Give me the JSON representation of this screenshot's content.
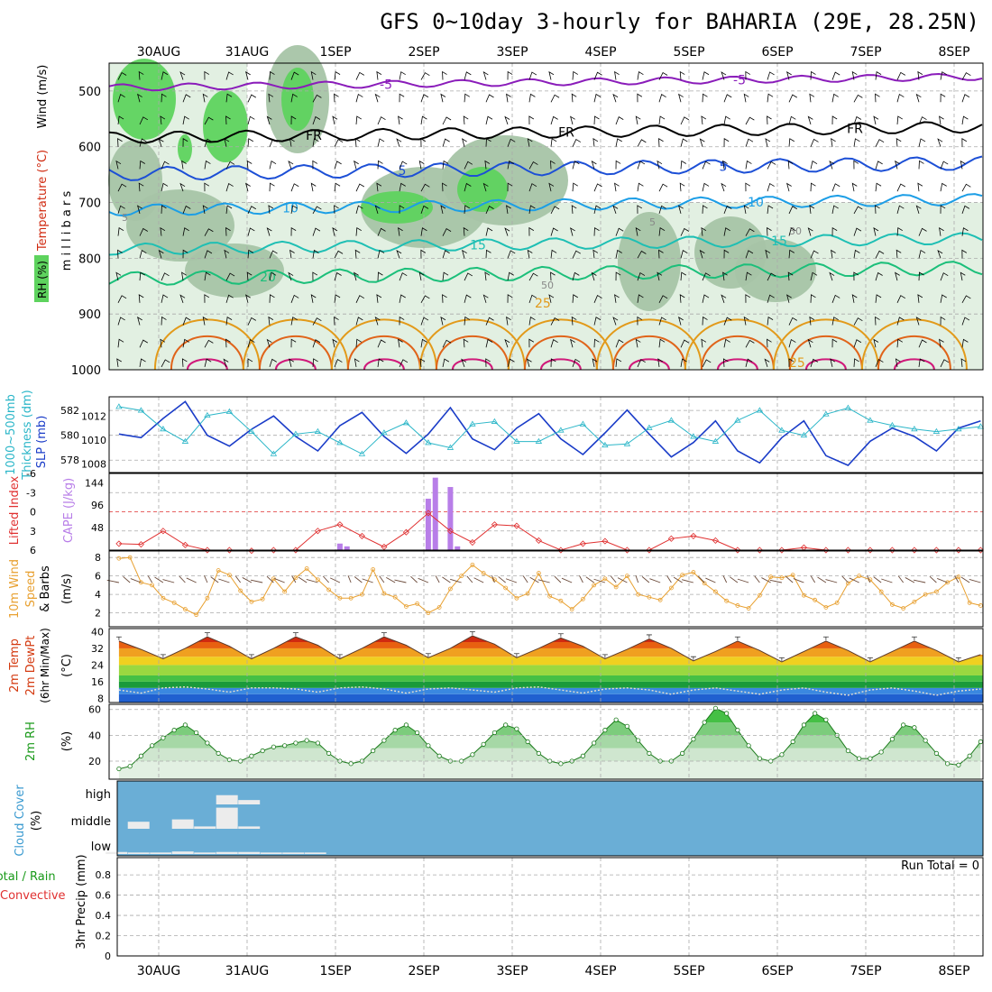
{
  "title": "GFS 0~10day 3-hourly for BAHARIA (29E, 28.25N)",
  "chart_data": [
    {
      "type": "heatmap",
      "panel": "upper-air",
      "ylabel": "m i l l i b a r s",
      "side_labels": [
        "RH (%)",
        "Temperature (°C)",
        "Wind (m/s)"
      ],
      "y_ticks": [
        500,
        600,
        700,
        800,
        900,
        1000
      ],
      "ylim": [
        1000,
        450
      ],
      "x_categories": [
        "30AUG",
        "31AUG",
        "1SEP",
        "2SEP",
        "3SEP",
        "4SEP",
        "5SEP",
        "6SEP",
        "7SEP",
        "8SEP"
      ],
      "isotherm_labels": [
        "-5",
        "FR",
        "5",
        "10",
        "15",
        "20",
        "25",
        "30"
      ],
      "rh_contour_labels": [
        "5",
        "30",
        "50"
      ],
      "colors": {
        "rh_high": "#5ed35e",
        "rh_mid": "#a6c4a6",
        "rh_low": "#e2f0e2",
        "iso_m5": "#8a1cba",
        "iso_fr": "#000000",
        "iso_5": "#1c4fd6",
        "iso_10": "#1c9ee6",
        "iso_15": "#1ebfb4",
        "iso_20": "#1bbf7a",
        "iso_25": "#e29a1a",
        "iso_30": "#e0641a",
        "iso_35": "#d01a7a"
      }
    },
    {
      "type": "line",
      "panel": "sea-level-pressure",
      "series": [
        {
          "name": "SLP (mb)",
          "color": "#1a3cc8",
          "x_days": [
            0.0,
            0.25,
            0.5,
            0.75,
            1.0,
            1.25,
            1.5,
            1.75,
            2.0,
            2.25,
            2.5,
            2.75,
            3.0,
            3.25,
            3.5,
            3.75,
            4.0,
            4.25,
            4.5,
            4.75,
            5.0,
            5.25,
            5.5,
            5.75,
            6.0,
            6.25,
            6.5,
            6.75,
            7.0,
            7.25,
            7.5,
            7.75,
            8.0,
            8.25,
            8.5,
            8.75,
            9.0,
            9.25,
            9.5,
            9.75,
            10.0
          ],
          "values": [
            1010.5,
            1010.2,
            1011.8,
            1013.2,
            1010.4,
            1009.5,
            1010.9,
            1012.0,
            1010.3,
            1009.1,
            1011.2,
            1012.3,
            1010.3,
            1008.9,
            1010.5,
            1012.7,
            1010.1,
            1009.2,
            1011.0,
            1012.2,
            1010.1,
            1008.8,
            1010.6,
            1012.5,
            1010.5,
            1008.6,
            1009.8,
            1011.6,
            1009.1,
            1008.1,
            1010.2,
            1011.6,
            1008.7,
            1007.9,
            1009.9,
            1011.0,
            1010.3,
            1009.1,
            1011.0,
            1011.6,
            1011.8
          ]
        },
        {
          "name": "1000~500mb Thickness (dm)",
          "color": "#2bb6c8",
          "x_days": [
            0.0,
            0.25,
            0.5,
            0.75,
            1.0,
            1.25,
            1.5,
            1.75,
            2.0,
            2.25,
            2.5,
            2.75,
            3.0,
            3.25,
            3.5,
            3.75,
            4.0,
            4.25,
            4.5,
            4.75,
            5.0,
            5.25,
            5.5,
            5.75,
            6.0,
            6.25,
            6.5,
            6.75,
            7.0,
            7.25,
            7.5,
            7.75,
            8.0,
            8.25,
            8.5,
            8.75,
            9.0,
            9.25,
            9.5,
            9.75,
            10.0
          ],
          "values": [
            582.3,
            582.0,
            580.5,
            579.5,
            581.6,
            581.9,
            580.3,
            578.5,
            580.1,
            580.3,
            579.4,
            578.5,
            580.2,
            581.0,
            579.4,
            579.0,
            580.9,
            581.1,
            579.5,
            579.5,
            580.4,
            580.9,
            579.2,
            579.3,
            580.6,
            581.2,
            579.9,
            579.5,
            581.2,
            582.0,
            580.4,
            580.0,
            581.7,
            582.2,
            581.2,
            580.8,
            580.5,
            580.3,
            580.5,
            580.7,
            580.5
          ]
        }
      ],
      "y_ticks_left": [
        578,
        580,
        582
      ],
      "y_ticks_right": [
        1008,
        1010,
        1012
      ],
      "ylim_left": [
        577,
        583.1
      ],
      "ylim_right": [
        1007.3,
        1013.6
      ]
    },
    {
      "type": "bar",
      "panel": "instability",
      "series": [
        {
          "name": "CAPE (J/kg)",
          "color": "#b87ee8",
          "x_days": [
            2.5,
            2.58,
            3.5,
            3.58,
            3.75,
            3.83
          ],
          "values": [
            14,
            8,
            110,
            155,
            135,
            8
          ]
        },
        {
          "name": "Lifted Index",
          "color": "#e03030",
          "x_days": [
            0.0,
            0.25,
            0.5,
            0.75,
            1.0,
            1.25,
            1.5,
            1.75,
            2.0,
            2.25,
            2.5,
            2.75,
            3.0,
            3.25,
            3.5,
            3.75,
            4.0,
            4.25,
            4.5,
            4.75,
            5.0,
            5.25,
            5.5,
            5.75,
            6.0,
            6.25,
            6.5,
            6.75,
            7.0,
            7.25,
            7.5,
            7.75,
            8.0,
            8.25,
            8.5,
            8.75,
            9.0,
            9.25,
            9.5,
            9.75,
            10.0
          ],
          "values": [
            5.0,
            5.1,
            3.0,
            5.2,
            6.0,
            6.0,
            6.1,
            6.0,
            6.0,
            3.0,
            2.0,
            3.8,
            5.5,
            3.2,
            0.2,
            3.0,
            4.8,
            2.0,
            2.2,
            4.5,
            6.0,
            5.0,
            4.6,
            6.0,
            6.0,
            4.2,
            3.8,
            4.5,
            6.0,
            6.0,
            6.0,
            5.6,
            6.0,
            6.0,
            6.0,
            6.0,
            6.0,
            6.0,
            6.0,
            6.0,
            6.0
          ]
        }
      ],
      "y_ticks_left": [
        "-6",
        "-3",
        "0",
        "3",
        "6"
      ],
      "y_ticks_right": [
        "144",
        "96",
        "48"
      ],
      "ylim_left": [
        6,
        -6
      ],
      "ylim_right": [
        0,
        164
      ]
    },
    {
      "type": "line",
      "panel": "10m-wind",
      "series": [
        {
          "name": "10m Wind Speed (m/s)",
          "color": "#e8a030",
          "x_days": [
            0.0,
            0.125,
            0.25,
            0.375,
            0.5,
            0.625,
            0.75,
            0.875,
            1.0,
            1.125,
            1.25,
            1.375,
            1.5,
            1.625,
            1.75,
            1.875,
            2.0,
            2.125,
            2.25,
            2.375,
            2.5,
            2.625,
            2.75,
            2.875,
            3.0,
            3.125,
            3.25,
            3.375,
            3.5,
            3.625,
            3.75,
            3.875,
            4.0,
            4.125,
            4.25,
            4.375,
            4.5,
            4.625,
            4.75,
            4.875,
            5.0,
            5.125,
            5.25,
            5.375,
            5.5,
            5.625,
            5.75,
            5.875,
            6.0,
            6.125,
            6.25,
            6.375,
            6.5,
            6.625,
            6.75,
            6.875,
            7.0,
            7.125,
            7.25,
            7.375,
            7.5,
            7.625,
            7.75,
            7.875,
            8.0,
            8.125,
            8.25,
            8.375,
            8.5,
            8.625,
            8.75,
            8.875,
            9.0,
            9.125,
            9.25,
            9.375,
            9.5,
            9.625,
            9.75,
            9.875,
            10.0
          ],
          "values": [
            7.9,
            8.0,
            5.3,
            5.0,
            3.6,
            3.1,
            2.4,
            1.8,
            3.6,
            6.6,
            6.1,
            4.4,
            3.2,
            3.5,
            5.7,
            4.3,
            5.8,
            6.8,
            5.6,
            4.5,
            3.6,
            3.6,
            4.0,
            6.7,
            4.1,
            3.7,
            2.7,
            3.0,
            2.0,
            2.6,
            4.6,
            6.0,
            7.2,
            6.3,
            5.6,
            4.7,
            3.6,
            4.1,
            6.3,
            3.8,
            3.3,
            2.4,
            3.5,
            5.0,
            5.7,
            4.8,
            6.0,
            4.0,
            3.7,
            3.4,
            4.7,
            6.1,
            6.4,
            5.2,
            4.3,
            3.3,
            2.8,
            2.5,
            3.9,
            5.9,
            5.8,
            6.1,
            3.9,
            3.4,
            2.6,
            3.1,
            5.2,
            6.0,
            5.6,
            4.3,
            2.9,
            2.5,
            3.2,
            4.0,
            4.3,
            5.3,
            5.9,
            3.1,
            2.8,
            1.7,
            1.8
          ]
        }
      ],
      "y_ticks": [
        2,
        4,
        6,
        8
      ],
      "ylim": [
        0.5,
        8.7
      ]
    },
    {
      "type": "area",
      "panel": "2m-temperature",
      "series": [
        {
          "name": "2m Temp (°C)",
          "color": "#d43a10",
          "x_days": [
            0.0,
            0.25,
            0.5,
            0.75,
            1.0,
            1.25,
            1.5,
            1.75,
            2.0,
            2.25,
            2.5,
            2.75,
            3.0,
            3.25,
            3.5,
            3.75,
            4.0,
            4.25,
            4.5,
            4.75,
            5.0,
            5.25,
            5.5,
            5.75,
            6.0,
            6.25,
            6.5,
            6.75,
            7.0,
            7.25,
            7.5,
            7.75,
            8.0,
            8.25,
            8.5,
            8.75,
            9.0,
            9.25,
            9.5,
            9.75,
            10.0
          ],
          "values": [
            35.5,
            31.5,
            27.0,
            32.0,
            37.5,
            33.0,
            27.0,
            32.0,
            37.5,
            33.5,
            27.0,
            32.0,
            37.5,
            33.5,
            27.5,
            32.0,
            38.0,
            34.0,
            27.5,
            32.0,
            37.0,
            33.0,
            27.0,
            31.5,
            36.5,
            32.0,
            26.0,
            30.5,
            35.5,
            31.0,
            25.5,
            30.5,
            35.5,
            31.0,
            25.5,
            30.5,
            35.5,
            31.0,
            25.5,
            29.0,
            28.0
          ]
        },
        {
          "name": "2m DewPt (°C)",
          "color": "#c06a6a",
          "x_days": [
            0.0,
            0.25,
            0.5,
            0.75,
            1.0,
            1.25,
            1.5,
            1.75,
            2.0,
            2.25,
            2.5,
            2.75,
            3.0,
            3.25,
            3.5,
            3.75,
            4.0,
            4.25,
            4.5,
            4.75,
            5.0,
            5.25,
            5.5,
            5.75,
            6.0,
            6.25,
            6.5,
            6.75,
            7.0,
            7.25,
            7.5,
            7.75,
            8.0,
            8.25,
            8.5,
            8.75,
            9.0,
            9.25,
            9.5,
            9.75,
            10.0
          ],
          "values": [
            12.0,
            10.5,
            13.0,
            13.5,
            12.5,
            11.0,
            13.0,
            13.0,
            12.5,
            11.0,
            13.0,
            13.5,
            12.5,
            10.5,
            12.5,
            13.0,
            12.0,
            11.0,
            13.0,
            13.5,
            12.0,
            10.5,
            12.5,
            13.0,
            12.0,
            10.0,
            12.0,
            13.0,
            11.5,
            10.0,
            12.0,
            13.0,
            11.0,
            9.5,
            12.0,
            13.0,
            11.5,
            9.5,
            11.5,
            12.5,
            12.0
          ]
        }
      ],
      "y_ticks": [
        8,
        16,
        24,
        32,
        40
      ],
      "ylim": [
        6,
        41.5
      ],
      "band_colors": [
        "#2060d0",
        "#3a88e0",
        "#1a9a3a",
        "#45c045",
        "#9ad840",
        "#f0d020",
        "#f0a020",
        "#e86010",
        "#d02a10",
        "#a01010"
      ]
    },
    {
      "type": "area",
      "panel": "2m-rh",
      "series": [
        {
          "name": "2m RH (%)",
          "color": "#1a7a1a",
          "x_days": [
            0.0,
            0.125,
            0.25,
            0.375,
            0.5,
            0.625,
            0.75,
            0.875,
            1.0,
            1.125,
            1.25,
            1.375,
            1.5,
            1.625,
            1.75,
            1.875,
            2.0,
            2.125,
            2.25,
            2.375,
            2.5,
            2.625,
            2.75,
            2.875,
            3.0,
            3.125,
            3.25,
            3.375,
            3.5,
            3.625,
            3.75,
            3.875,
            4.0,
            4.125,
            4.25,
            4.375,
            4.5,
            4.625,
            4.75,
            4.875,
            5.0,
            5.125,
            5.25,
            5.375,
            5.5,
            5.625,
            5.75,
            5.875,
            6.0,
            6.125,
            6.25,
            6.375,
            6.5,
            6.625,
            6.75,
            6.875,
            7.0,
            7.125,
            7.25,
            7.375,
            7.5,
            7.625,
            7.75,
            7.875,
            8.0,
            8.125,
            8.25,
            8.375,
            8.5,
            8.625,
            8.75,
            8.875,
            9.0,
            9.125,
            9.25,
            9.375,
            9.5,
            9.625,
            9.75,
            9.875,
            10.0
          ],
          "values": [
            14,
            16,
            24,
            32,
            38,
            44,
            48,
            42,
            34,
            26,
            21,
            20,
            24,
            28,
            31,
            32,
            34,
            36,
            34,
            26,
            20,
            18,
            20,
            28,
            36,
            44,
            48,
            42,
            32,
            24,
            20,
            20,
            25,
            33,
            42,
            48,
            45,
            35,
            26,
            20,
            18,
            20,
            24,
            34,
            44,
            52,
            47,
            36,
            26,
            20,
            20,
            26,
            37,
            50,
            61,
            57,
            44,
            32,
            22,
            20,
            25,
            35,
            48,
            57,
            52,
            40,
            28,
            22,
            22,
            27,
            37,
            48,
            46,
            36,
            26,
            18,
            17,
            24,
            35,
            49,
            46
          ]
        }
      ],
      "y_ticks": [
        20,
        40,
        60
      ],
      "ylim": [
        6,
        64
      ]
    },
    {
      "type": "bar",
      "panel": "cloud-cover",
      "ylabel": "Cloud Cover (%)",
      "y_ticks": [
        "high",
        "middle",
        "low"
      ],
      "background": "#6aaed6",
      "series": [
        {
          "name": "high",
          "x_days": [
            1.25,
            1.5
          ],
          "values": [
            38,
            18
          ]
        },
        {
          "name": "middle",
          "x_days": [
            0.25,
            0.75,
            1.0,
            1.25,
            1.5
          ],
          "values": [
            30,
            40,
            10,
            90,
            10
          ]
        },
        {
          "name": "low",
          "x_days": [
            0.0,
            0.25,
            0.5,
            0.75,
            1.0,
            1.25,
            1.5,
            1.75,
            2.0,
            2.25
          ],
          "values": [
            8,
            6,
            6,
            10,
            6,
            8,
            8,
            6,
            6,
            6
          ]
        }
      ]
    },
    {
      "type": "line",
      "panel": "precipitation",
      "ylabel": "3hr Precip (mm)",
      "side_labels": [
        "Total / Rain",
        "Convective"
      ],
      "annotation": "Run Total = 0",
      "y_ticks": [
        "0",
        "0.2",
        "0.4",
        "0.6",
        "0.8"
      ],
      "ylim": [
        0,
        0.97
      ],
      "series": []
    }
  ]
}
